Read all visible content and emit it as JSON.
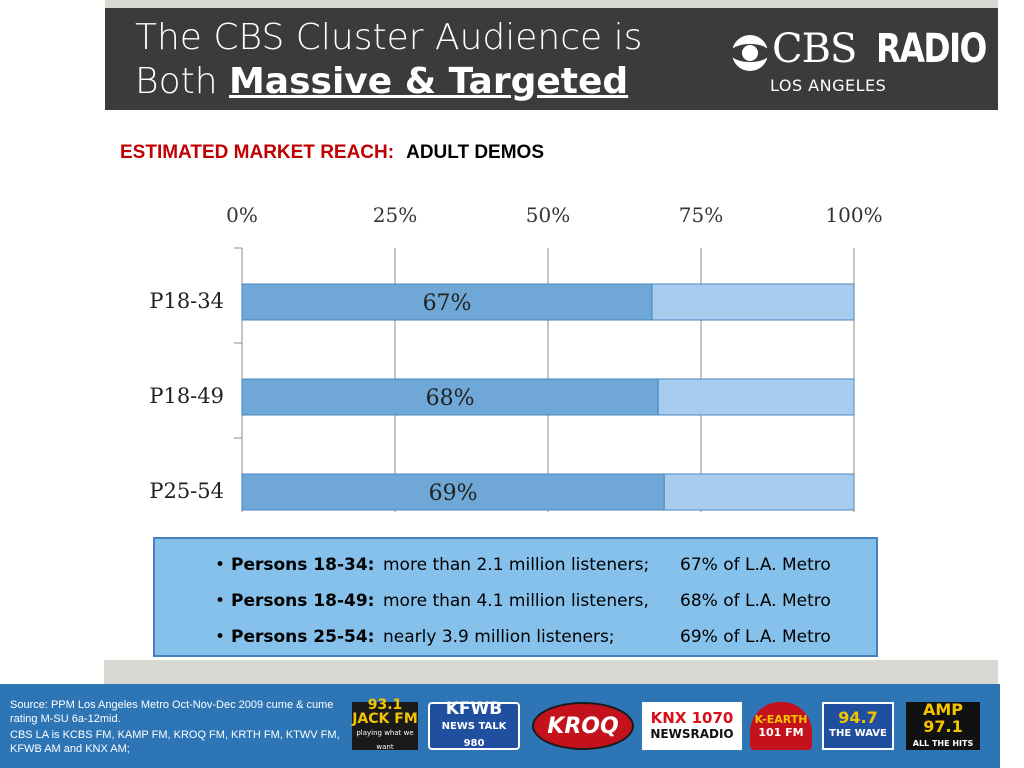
{
  "header": {
    "title_line1": "The CBS Cluster Audience is",
    "title_line2_prefix": "Both ",
    "title_line2_emph": "Massive & Targeted",
    "logo": {
      "cbs": "CBS",
      "radio": "RADIO",
      "city": "LOS ANGELES",
      "icon": "cbs-eye-icon"
    }
  },
  "subhead": {
    "red": "ESTIMATED MARKET REACH:",
    "black": "ADULT DEMOS",
    "red_color": "#c00000"
  },
  "chart_data": {
    "type": "bar",
    "orientation": "horizontal",
    "stacked": true,
    "categories": [
      "P18-34",
      "P18-49",
      "P25-54"
    ],
    "series": [
      {
        "values": [
          67,
          68,
          69
        ],
        "color": "#6fa8d6",
        "labels": [
          "67%",
          "68%",
          "69%"
        ]
      },
      {
        "values": [
          33,
          32,
          31
        ],
        "color": "#a7ccee"
      }
    ],
    "x_ticks": [
      "0%",
      "25%",
      "50%",
      "75%",
      "100%"
    ],
    "xlim": [
      0,
      100
    ],
    "grid": true,
    "tick_position": "top"
  },
  "bullets": [
    {
      "label": "Persons 18-34:",
      "desc": "more than 2.1 million listeners;",
      "pct": "67% of L.A. Metro"
    },
    {
      "label": "Persons 18-49:",
      "desc": "more than 4.1 million listeners,",
      "pct": "68% of L.A. Metro"
    },
    {
      "label": "Persons 25-54:",
      "desc": "nearly 3.9 million listeners;",
      "pct": "69% of L.A. Metro"
    }
  ],
  "footer": {
    "source": "Source:  PPM Los Angeles Metro  Oct-Nov-Dec 2009 cume & cume rating M-SU 6a-12mid.",
    "stations": "CBS LA is KCBS FM, KAMP FM, KROQ FM, KRTH FM, KTWV FM, KFWB AM and KNX AM;",
    "logos": [
      {
        "text": "93.1 JACK FM",
        "sub": "playing what we want",
        "icon": "jack-fm-logo"
      },
      {
        "text": "KFWB",
        "sub": "NEWS TALK 980",
        "icon": "kfwb-logo"
      },
      {
        "text": "KROQ",
        "icon": "kroq-logo"
      },
      {
        "text": "KNX 1070",
        "sub": "NEWSRADIO",
        "icon": "knx-logo"
      },
      {
        "text": "K-EARTH",
        "sub": "101 FM",
        "icon": "kearth-logo"
      },
      {
        "text": "94.7",
        "sub": "THE WAVE",
        "icon": "the-wave-logo"
      },
      {
        "text": "AMP 97.1",
        "sub": "ALL THE HITS",
        "icon": "amp-logo"
      }
    ]
  },
  "colors": {
    "header_bg": "#3b3b3b",
    "footer_bg": "#2e75b6",
    "box_bg": "#85c1ea",
    "box_border": "#4a7fbf"
  }
}
